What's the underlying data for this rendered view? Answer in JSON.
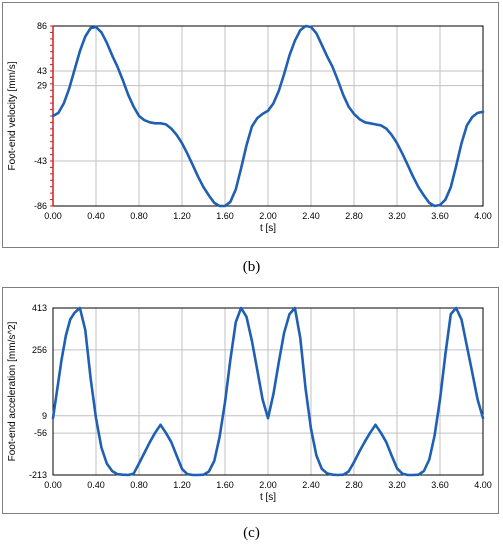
{
  "captions": {
    "b": "(b)",
    "c": "(c)"
  },
  "chart_data": [
    {
      "type": "line",
      "xlabel": "t [s]",
      "ylabel": "Foot-end velocity [mm/s]",
      "xlim": [
        0,
        4
      ],
      "ylim": [
        -86,
        86
      ],
      "x_ticks": [
        "0.00",
        "0.40",
        "0.80",
        "1.20",
        "1.60",
        "2.00",
        "2.40",
        "2.80",
        "3.20",
        "3.60",
        "4.00"
      ],
      "y_ticks": [
        "86",
        "43",
        "29",
        "-43",
        "-86"
      ],
      "y_tick_values": [
        86,
        43,
        29,
        -43,
        -86
      ],
      "grid": true,
      "colors": {
        "line": "#1f5fb4",
        "grid": "#c0c0c0",
        "left_axis": "#d02020"
      },
      "series": [
        {
          "x": [
            0.0,
            0.05,
            0.1,
            0.15,
            0.2,
            0.25,
            0.3,
            0.35,
            0.4,
            0.45,
            0.5,
            0.55,
            0.6,
            0.65,
            0.7,
            0.75,
            0.8,
            0.85,
            0.9,
            0.95,
            1.0,
            1.05,
            1.1,
            1.15,
            1.2,
            1.25,
            1.3,
            1.35,
            1.4,
            1.45,
            1.5,
            1.55,
            1.6,
            1.65,
            1.7,
            1.75,
            1.8,
            1.85,
            1.9,
            1.95,
            2.0,
            2.05,
            2.1,
            2.15,
            2.2,
            2.25,
            2.3,
            2.35,
            2.4,
            2.45,
            2.5,
            2.55,
            2.6,
            2.65,
            2.7,
            2.75,
            2.8,
            2.85,
            2.9,
            2.95,
            3.0,
            3.05,
            3.1,
            3.15,
            3.2,
            3.25,
            3.3,
            3.35,
            3.4,
            3.45,
            3.5,
            3.55,
            3.6,
            3.65,
            3.7,
            3.75,
            3.8,
            3.85,
            3.9,
            3.95,
            4.0
          ],
          "values": [
            0,
            3,
            12,
            26,
            44,
            62,
            76,
            84,
            85,
            80,
            70,
            58,
            47,
            34,
            20,
            9,
            0,
            -4,
            -6,
            -7,
            -7,
            -8,
            -12,
            -18,
            -26,
            -36,
            -47,
            -58,
            -68,
            -76,
            -83,
            -86,
            -86,
            -82,
            -70,
            -50,
            -28,
            -10,
            -2,
            2,
            5,
            12,
            24,
            40,
            58,
            72,
            82,
            86,
            85,
            79,
            68,
            57,
            47,
            34,
            20,
            9,
            2,
            -3,
            -6,
            -7,
            -8,
            -9,
            -12,
            -18,
            -26,
            -36,
            -47,
            -58,
            -68,
            -76,
            -83,
            -86,
            -85,
            -80,
            -68,
            -48,
            -26,
            -9,
            -1,
            3,
            4
          ]
        }
      ]
    },
    {
      "type": "line",
      "xlabel": "t [s]",
      "ylabel": "Foot-end acceleration [mm/s^2]",
      "xlim": [
        0,
        4
      ],
      "ylim": [
        -213,
        413
      ],
      "x_ticks": [
        "0.00",
        "0.40",
        "0.80",
        "1.20",
        "1.60",
        "2.00",
        "2.40",
        "2.80",
        "3.20",
        "3.60",
        "4.00"
      ],
      "y_ticks": [
        "413",
        "256",
        "9",
        "-56",
        "-213"
      ],
      "y_tick_values": [
        413,
        256,
        9,
        -56,
        -213
      ],
      "grid": true,
      "colors": {
        "line": "#1f5fb4",
        "grid": "#c0c0c0"
      },
      "series": [
        {
          "x": [
            0.0,
            0.04,
            0.08,
            0.12,
            0.16,
            0.2,
            0.25,
            0.3,
            0.35,
            0.4,
            0.45,
            0.5,
            0.55,
            0.6,
            0.65,
            0.7,
            0.75,
            0.8,
            0.85,
            0.9,
            0.95,
            1.0,
            1.05,
            1.1,
            1.15,
            1.2,
            1.25,
            1.3,
            1.35,
            1.4,
            1.45,
            1.5,
            1.55,
            1.6,
            1.65,
            1.7,
            1.75,
            1.8,
            1.85,
            1.9,
            1.95,
            2.0,
            2.05,
            2.1,
            2.15,
            2.2,
            2.25,
            2.3,
            2.35,
            2.4,
            2.45,
            2.5,
            2.55,
            2.6,
            2.65,
            2.7,
            2.75,
            2.8,
            2.85,
            2.9,
            2.95,
            3.0,
            3.05,
            3.1,
            3.15,
            3.2,
            3.25,
            3.3,
            3.35,
            3.4,
            3.45,
            3.5,
            3.55,
            3.6,
            3.65,
            3.7,
            3.75,
            3.8,
            3.85,
            3.9,
            3.95,
            4.0
          ],
          "values": [
            0,
            110,
            220,
            310,
            370,
            395,
            413,
            330,
            150,
            0,
            -110,
            -170,
            -198,
            -210,
            -212,
            -213,
            -208,
            -170,
            -130,
            -90,
            -55,
            -25,
            -55,
            -90,
            -140,
            -190,
            -210,
            -213,
            -213,
            -212,
            -200,
            -160,
            -70,
            60,
            220,
            360,
            413,
            380,
            290,
            180,
            70,
            0,
            90,
            210,
            320,
            390,
            413,
            300,
            110,
            -40,
            -140,
            -190,
            -207,
            -212,
            -213,
            -212,
            -200,
            -165,
            -125,
            -88,
            -55,
            -25,
            -55,
            -90,
            -140,
            -188,
            -208,
            -213,
            -213,
            -212,
            -198,
            -155,
            -65,
            70,
            240,
            390,
            413,
            370,
            270,
            170,
            70,
            0
          ]
        }
      ]
    }
  ]
}
